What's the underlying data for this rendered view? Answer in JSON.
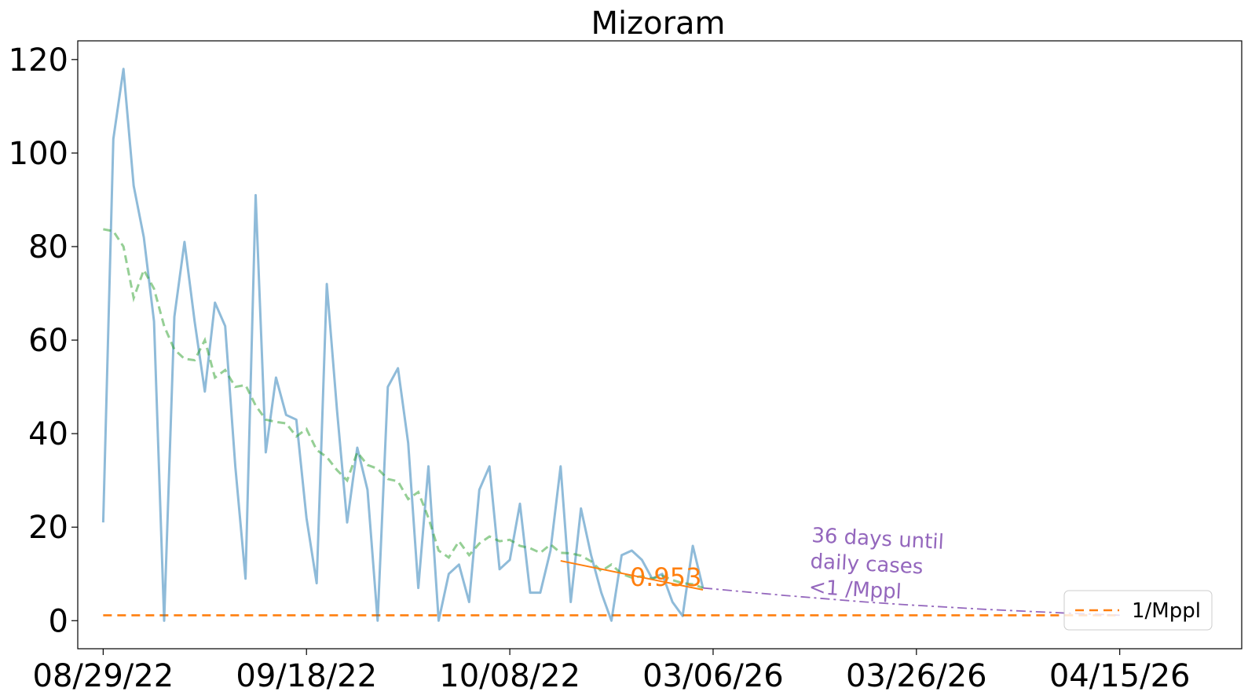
{
  "chart_data": {
    "type": "line",
    "title": "Mizoram",
    "xlabel": "",
    "ylabel": "",
    "x_tick_labels": [
      "08/29/22",
      "09/18/22",
      "10/08/22",
      "03/06/26",
      "03/26/26",
      "04/15/26"
    ],
    "y_ticks": [
      0,
      20,
      40,
      60,
      80,
      100,
      120
    ],
    "xlim_days": [
      -2.5,
      112
    ],
    "ylim": [
      -6,
      124
    ],
    "grid": false,
    "legend": {
      "placement": "bottom-right",
      "entries": [
        "1/Mppl"
      ]
    },
    "colors": {
      "daily": "#1f77b4",
      "average": "#2ca02c",
      "threshold": "#ff7f0e",
      "fit": "#ff7f0e",
      "projection": "#9467bd"
    },
    "series": [
      {
        "key": "daily",
        "x": [
          0,
          1,
          2,
          3,
          4,
          5,
          6,
          7,
          8,
          9,
          10,
          11,
          12,
          13,
          14,
          15,
          16,
          17,
          18,
          19,
          20,
          21,
          22,
          23,
          24,
          25,
          26,
          27,
          28,
          29,
          30,
          31,
          32,
          33,
          34,
          35,
          36,
          37,
          38,
          39,
          40,
          41,
          42,
          43,
          44,
          45,
          46,
          47,
          48,
          49,
          50,
          51,
          52,
          53,
          54,
          55,
          56,
          57,
          58,
          59
        ],
        "values": [
          21,
          103,
          118,
          93,
          82,
          64,
          0,
          65,
          81,
          64,
          49,
          68,
          63,
          33,
          9,
          91,
          36,
          52,
          44,
          43,
          22,
          8,
          72,
          45,
          21,
          37,
          28,
          0,
          50,
          54,
          38,
          7,
          33,
          0,
          10,
          12,
          4,
          28,
          33,
          11,
          13,
          25,
          6,
          6,
          15,
          33,
          4,
          24,
          14,
          6,
          0,
          14,
          15,
          13,
          9,
          10,
          4,
          1,
          16,
          7
        ]
      },
      {
        "key": "average",
        "x": [
          0,
          1,
          2,
          3,
          4,
          5,
          6,
          7,
          8,
          9,
          10,
          11,
          12,
          13,
          14,
          15,
          16,
          17,
          18,
          19,
          20,
          21,
          22,
          23,
          24,
          25,
          26,
          27,
          28,
          29,
          30,
          31,
          32,
          33,
          34,
          35,
          36,
          37,
          38,
          39,
          40,
          41,
          42,
          43,
          44,
          45,
          46,
          47,
          48,
          49,
          50,
          51,
          52,
          53,
          54,
          55,
          56,
          57,
          58,
          59
        ],
        "values": [
          83.7,
          83.3,
          80,
          69,
          75,
          71,
          63,
          58,
          56,
          55.7,
          60,
          52,
          53.6,
          50,
          50.4,
          46,
          43,
          42.5,
          42.2,
          39.4,
          41,
          36.5,
          35,
          32.2,
          30,
          36,
          33.3,
          32.5,
          30.3,
          29.8,
          26,
          27.5,
          22,
          15,
          13.5,
          17,
          14,
          16.5,
          18,
          17,
          17.3,
          16,
          15.5,
          14.5,
          16.3,
          14.5,
          14.4,
          13.9,
          12.7,
          10.6,
          12,
          10,
          9.2,
          9.5,
          9,
          9.6,
          8.7,
          8,
          7.8,
          7
        ]
      }
    ],
    "fit": {
      "label": "0.953",
      "x": [
        45,
        59
      ],
      "values": [
        12.8,
        6.6
      ]
    },
    "projection": {
      "x": [
        59,
        63,
        67,
        71,
        75,
        79,
        83,
        87,
        91,
        95,
        99,
        100
      ],
      "values": [
        7,
        6.2,
        5.4,
        4.7,
        4.0,
        3.4,
        2.9,
        2.4,
        2.0,
        1.6,
        1.25,
        1.15
      ],
      "annotation": [
        "36 days until",
        "daily cases",
        "<1 /Mppl"
      ]
    },
    "threshold": {
      "name": "1/Mppl",
      "value": 1.15
    }
  }
}
